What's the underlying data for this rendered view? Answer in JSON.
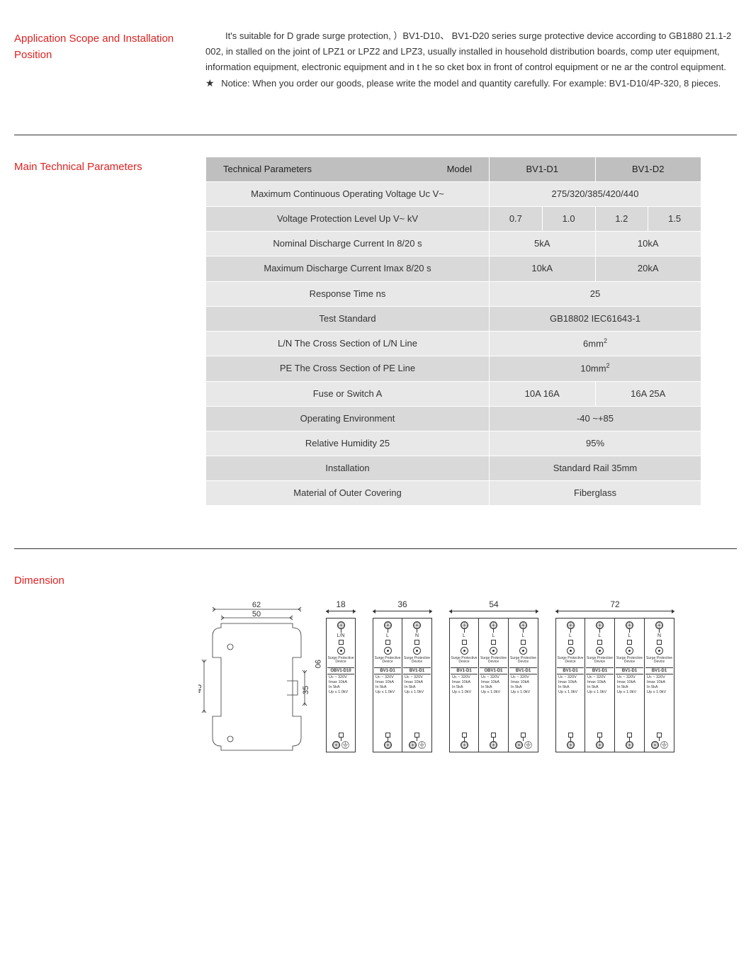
{
  "scope": {
    "title": "Application Scope and Installation Position",
    "para1": "It's suitable for D grade surge protection, ）BV1-D10、  BV1-D20 series surge protective device according to GB1880 21.1-2 002, in stalled on the joint of LPZ1 or LPZ2 and LPZ3, usually installed in household distribution boards, comp uter equipment, information equipment, electronic equipment and in t he so cket box in front of control equipment or ne ar the control equipment.",
    "notice_prefix": "★",
    "notice": "Notice: When you order our goods, please write the model and quantity carefully. For example:   BV1-D10/4P-320, 8 pieces."
  },
  "tech": {
    "title": "Main Technical Parameters",
    "header_model": "Model",
    "header_params": "Technical Parameters",
    "col_d1": "BV1-D1",
    "col_d2": "BV1-D2",
    "rows": {
      "uc_label": "Maximum Continuous Operating Voltage Uc   V~",
      "uc_value": "275/320/385/420/440",
      "up_label": "Voltage Protection Level Up   V~   kV",
      "up_v1": "0.7",
      "up_v2": "1.0",
      "up_v3": "1.2",
      "up_v4": "1.5",
      "in_label": "Nominal Discharge Current In   8/20   s",
      "in_v1": "5kA",
      "in_v2": "10kA",
      "imax_label": "Maximum Discharge Current Imax   8/20   s",
      "imax_v1": "10kA",
      "imax_v2": "20kA",
      "resp_label": "Response Time ns",
      "resp_v": "25",
      "std_label": "Test Standard",
      "std_v": "GB18802   IEC61643-1",
      "ln_label": "L/N  The Cross Section of L/N Line",
      "ln_v": "6mm",
      "pe_label": "PE The Cross Section of PE Line",
      "pe_v": "10mm",
      "fuse_label": "Fuse or Switch   A",
      "fuse_v1": "10A   16A",
      "fuse_v2": "16A   25A",
      "env_label": "Operating Environment",
      "env_v": "-40   ~+85",
      "hum_label": "Relative Humidity   25",
      "hum_v": "95%",
      "inst_label": "Installation",
      "inst_v": "Standard Rail 35mm",
      "mat_label": "Material of Outer Covering",
      "mat_v": "Fiberglass"
    }
  },
  "dim": {
    "title": "Dimension",
    "side": {
      "w_outer": "62",
      "w_inner": "50",
      "h1": "45",
      "h2": "35"
    },
    "h_label": "90",
    "groups": [
      {
        "width": "18",
        "count": 1
      },
      {
        "width": "36",
        "count": 2
      },
      {
        "width": "54",
        "count": 3
      },
      {
        "width": "72",
        "count": 4
      }
    ],
    "module": {
      "spd": "Surge Protective Device",
      "model_d10": "OBV1-D10",
      "model_d1": "BV1-D1",
      "model_obv1": "OBV1-D1",
      "uc": "Uc  ~  320V",
      "imax": "Imax  10kA",
      "in": "In     5kA",
      "up": "Up ≤ 1.0kV",
      "term_ln": "L/N",
      "term_l": "L",
      "term_n": "N"
    }
  }
}
